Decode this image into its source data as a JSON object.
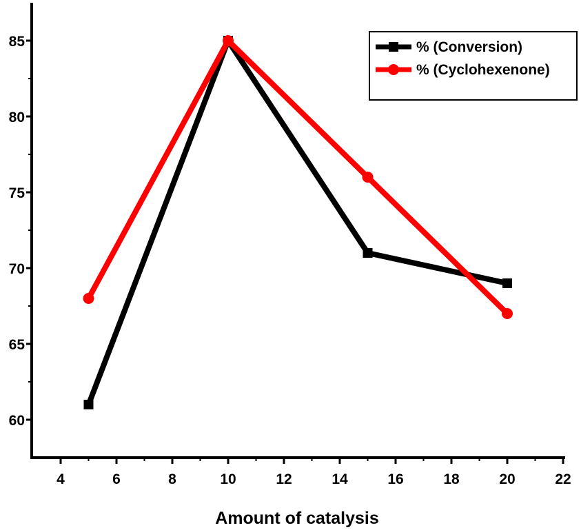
{
  "chart_data": {
    "type": "line",
    "title": "",
    "xlabel": "Amount of catalysis",
    "ylabel": "",
    "xlim": [
      3,
      22
    ],
    "ylim": [
      58,
      87
    ],
    "x_ticks": [
      4,
      6,
      8,
      10,
      12,
      14,
      16,
      18,
      20,
      22
    ],
    "y_ticks": [
      60,
      65,
      70,
      75,
      80,
      85
    ],
    "x_tick_labels": [
      "4",
      "6",
      "8",
      "10",
      "12",
      "14",
      "16",
      "18",
      "20",
      "22"
    ],
    "y_tick_labels": [
      "60",
      "65",
      "70",
      "75",
      "80",
      "85"
    ],
    "grid": false,
    "legend_position": "top-right",
    "series": [
      {
        "name": "% (Conversion)",
        "color": "#000000",
        "marker": "square",
        "x": [
          5,
          10,
          15,
          20
        ],
        "values": [
          61,
          85,
          71,
          69
        ]
      },
      {
        "name": "% (Cyclohexenone)",
        "color": "#ff0000",
        "marker": "circle",
        "x": [
          5,
          10,
          15,
          20
        ],
        "values": [
          68,
          85,
          76,
          67
        ]
      }
    ]
  }
}
